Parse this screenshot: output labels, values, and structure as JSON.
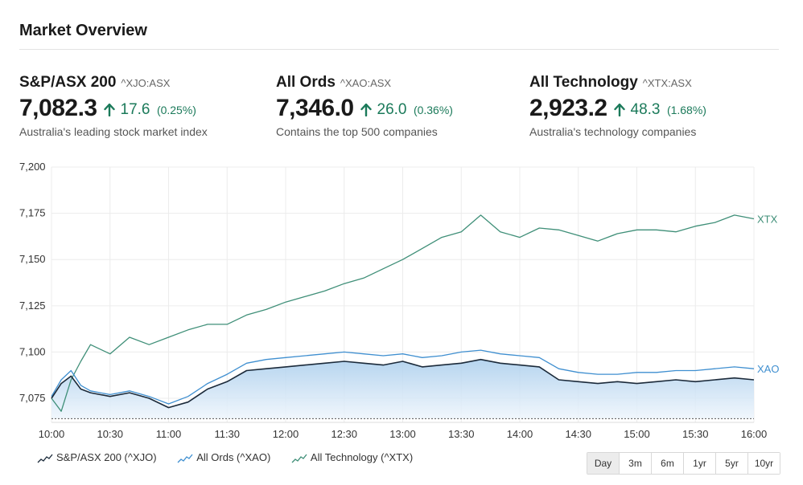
{
  "header": {
    "title": "Market Overview"
  },
  "indices": [
    {
      "name": "S&P/ASX 200",
      "symbol": "^XJO:ASX",
      "value": "7,082.3",
      "change": "17.6",
      "percent": "(0.25%)",
      "description": "Australia's leading stock market index"
    },
    {
      "name": "All Ords",
      "symbol": "^XAO:ASX",
      "value": "7,346.0",
      "change": "26.0",
      "percent": "(0.36%)",
      "description": "Contains the top 500 companies"
    },
    {
      "name": "All Technology",
      "symbol": "^XTX:ASX",
      "value": "2,923.2",
      "change": "48.3",
      "percent": "(1.68%)",
      "description": "Australia's technology companies"
    }
  ],
  "colors": {
    "up": "#1b7a5a",
    "xjo": "#1b2a3a",
    "xao": "#3f8fd0",
    "xtx": "#3f8f78",
    "fill_top": "#a9cdec",
    "fill_bottom": "#eef5fc"
  },
  "legend": [
    {
      "label": "S&P/ASX 200 (^XJO)",
      "color": "#1b2a3a"
    },
    {
      "label": "All Ords (^XAO)",
      "color": "#3f8fd0"
    },
    {
      "label": "All Technology (^XTX)",
      "color": "#3f8f78"
    }
  ],
  "ranges": {
    "options": [
      "Day",
      "3m",
      "6m",
      "1yr",
      "5yr",
      "10yr"
    ],
    "selected": "Day"
  },
  "chart_data": {
    "type": "line",
    "x_ticks": [
      "10:00",
      "10:30",
      "11:00",
      "11:30",
      "12:00",
      "12:30",
      "13:00",
      "13:30",
      "14:00",
      "14:30",
      "15:00",
      "15:30",
      "16:00"
    ],
    "y_ticks": [
      "7,075",
      "7,100",
      "7,125",
      "7,150",
      "7,175",
      "7,200"
    ],
    "ylim": [
      7062,
      7200
    ],
    "baseline": 7064,
    "grid": true,
    "series": [
      {
        "name": "S&P/ASX 200 (^XJO)",
        "end_label": "",
        "x": [
          "10:00",
          "10:05",
          "10:10",
          "10:15",
          "10:20",
          "10:30",
          "10:40",
          "10:50",
          "11:00",
          "11:10",
          "11:20",
          "11:30",
          "11:40",
          "11:50",
          "12:00",
          "12:10",
          "12:20",
          "12:30",
          "12:40",
          "12:50",
          "13:00",
          "13:10",
          "13:20",
          "13:30",
          "13:40",
          "13:50",
          "14:00",
          "14:10",
          "14:20",
          "14:30",
          "14:40",
          "14:50",
          "15:00",
          "15:10",
          "15:20",
          "15:30",
          "15:40",
          "15:50",
          "16:00"
        ],
        "y": [
          7075,
          7083,
          7087,
          7080,
          7078,
          7076,
          7078,
          7075,
          7070,
          7073,
          7080,
          7084,
          7090,
          7091,
          7092,
          7093,
          7094,
          7095,
          7094,
          7093,
          7095,
          7092,
          7093,
          7094,
          7096,
          7094,
          7093,
          7092,
          7085,
          7084,
          7083,
          7084,
          7083,
          7084,
          7085,
          7084,
          7085,
          7086,
          7085
        ]
      },
      {
        "name": "All Ords (^XAO)",
        "end_label": "XAO",
        "x": [
          "10:00",
          "10:05",
          "10:10",
          "10:15",
          "10:20",
          "10:30",
          "10:40",
          "10:50",
          "11:00",
          "11:10",
          "11:20",
          "11:30",
          "11:40",
          "11:50",
          "12:00",
          "12:10",
          "12:20",
          "12:30",
          "12:40",
          "12:50",
          "13:00",
          "13:10",
          "13:20",
          "13:30",
          "13:40",
          "13:50",
          "14:00",
          "14:10",
          "14:20",
          "14:30",
          "14:40",
          "14:50",
          "15:00",
          "15:10",
          "15:20",
          "15:30",
          "15:40",
          "15:50",
          "16:00"
        ],
        "y": [
          7076,
          7085,
          7090,
          7082,
          7079,
          7077,
          7079,
          7076,
          7072,
          7076,
          7083,
          7088,
          7094,
          7096,
          7097,
          7098,
          7099,
          7100,
          7099,
          7098,
          7099,
          7097,
          7098,
          7100,
          7101,
          7099,
          7098,
          7097,
          7091,
          7089,
          7088,
          7088,
          7089,
          7089,
          7090,
          7090,
          7091,
          7092,
          7091
        ]
      },
      {
        "name": "All Technology (^XTX)",
        "end_label": "XTX",
        "x": [
          "10:00",
          "10:05",
          "10:10",
          "10:15",
          "10:20",
          "10:30",
          "10:40",
          "10:50",
          "11:00",
          "11:10",
          "11:20",
          "11:30",
          "11:40",
          "11:50",
          "12:00",
          "12:10",
          "12:20",
          "12:30",
          "12:40",
          "12:50",
          "13:00",
          "13:10",
          "13:20",
          "13:30",
          "13:40",
          "13:50",
          "14:00",
          "14:10",
          "14:20",
          "14:30",
          "14:40",
          "14:50",
          "15:00",
          "15:10",
          "15:20",
          "15:30",
          "15:40",
          "15:50",
          "16:00"
        ],
        "y": [
          7075,
          7068,
          7085,
          7095,
          7104,
          7099,
          7108,
          7104,
          7108,
          7112,
          7115,
          7115,
          7120,
          7123,
          7127,
          7130,
          7133,
          7137,
          7140,
          7145,
          7150,
          7156,
          7162,
          7165,
          7174,
          7165,
          7162,
          7167,
          7166,
          7163,
          7160,
          7164,
          7166,
          7166,
          7165,
          7168,
          7170,
          7174,
          7172
        ]
      }
    ]
  }
}
